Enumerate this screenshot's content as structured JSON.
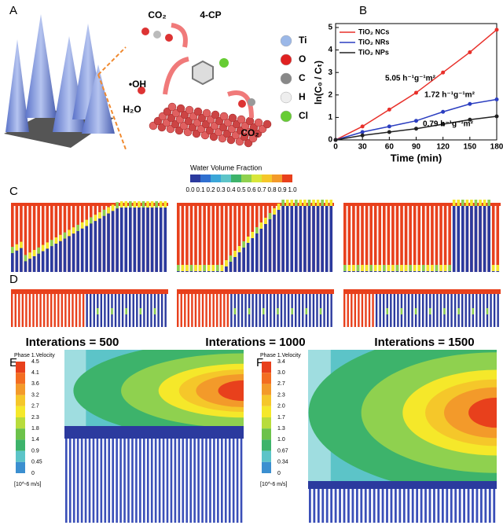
{
  "chart_data": {
    "type": "line",
    "x": [
      0,
      30,
      60,
      90,
      120,
      150,
      180
    ],
    "series": [
      {
        "name": "TiO₂ NCs",
        "color": "#e8302a",
        "values": [
          0,
          0.6,
          1.35,
          2.1,
          3.0,
          3.9,
          4.9
        ]
      },
      {
        "name": "TiO₂ NRs",
        "color": "#2b3ec0",
        "values": [
          0,
          0.35,
          0.6,
          0.85,
          1.25,
          1.6,
          1.8
        ]
      },
      {
        "name": "TiO₂ NPs",
        "color": "#222222",
        "values": [
          0,
          0.2,
          0.35,
          0.5,
          0.7,
          0.9,
          1.05
        ]
      }
    ],
    "annotations": [
      "5.05 h⁻¹g⁻¹m²",
      "1.72 h⁻¹g⁻¹m²",
      "0.79 h⁻¹g⁻¹m²"
    ],
    "x_label": "Time (min)",
    "y_label": "ln(C₀ / Cₜ)",
    "xlim": [
      0,
      180
    ],
    "ylim": [
      0,
      5
    ],
    "xticks": [
      0,
      30,
      60,
      90,
      120,
      150,
      180
    ],
    "yticks": [
      0,
      1,
      2,
      3,
      4,
      5
    ],
    "legend": "upper-left"
  },
  "figure": {
    "panel_labels": [
      "A",
      "B",
      "C",
      "D",
      "E",
      "F"
    ],
    "scene_labels": [
      "CO₂",
      "4-CP",
      "•OH",
      "H₂O",
      "CO₂"
    ],
    "atoms": [
      "Ti",
      "O",
      "C",
      "H",
      "Cl"
    ],
    "water_colorbar": {
      "title": "Water Volume Fraction",
      "ticks": [
        "0.0",
        "0.1",
        "0.2",
        "0.3",
        "0.4",
        "0.5",
        "0.6",
        "0.7",
        "0.8",
        "0.9",
        "1.0"
      ]
    },
    "iterations": [
      "Interations = 500",
      "Interations = 1000",
      "Interations = 1500"
    ],
    "velocity_e": {
      "title": "Phase 1.Velocity",
      "ticks": [
        "4.5",
        "4.1",
        "3.6",
        "3.2",
        "2.7",
        "2.3",
        "1.8",
        "1.4",
        "0.9",
        "0.45",
        "0"
      ],
      "unit": "[10^-6 m/s]"
    },
    "velocity_f": {
      "title": "Phase 1.Velocity",
      "ticks": [
        "3.4",
        "3.0",
        "2.7",
        "2.3",
        "2.0",
        "1.7",
        "1.3",
        "1.0",
        "0.67",
        "0.34",
        "0"
      ],
      "unit": "[10^-6 m/s]"
    }
  }
}
